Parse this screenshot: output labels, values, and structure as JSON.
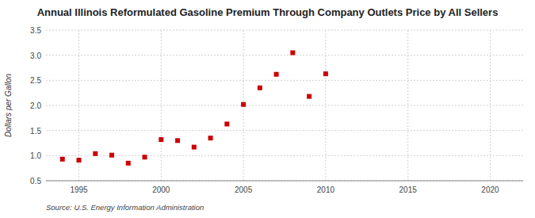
{
  "chart_data": {
    "type": "scatter",
    "title": "Annual Illinois Reformulated Gasoline Premium Through Company Outlets Price by All Sellers",
    "y_label": "Dollars per Gallon",
    "source": "Source: U.S. Energy Information Administration",
    "x": [
      1994,
      1995,
      1996,
      1997,
      1998,
      1999,
      2000,
      2001,
      2002,
      2003,
      2004,
      2005,
      2006,
      2007,
      2008,
      2009,
      2010
    ],
    "values": [
      0.93,
      0.91,
      1.04,
      1.01,
      0.85,
      0.97,
      1.32,
      1.3,
      1.17,
      1.35,
      1.63,
      2.02,
      2.35,
      2.62,
      3.05,
      2.18,
      2.63
    ],
    "color": "#cc0000",
    "marker": "square",
    "xlim": [
      1993,
      2022
    ],
    "ylim": [
      0.5,
      3.5
    ],
    "xticks": [
      1995,
      2000,
      2005,
      2010,
      2015,
      2020
    ],
    "yticks": [
      0.5,
      {
        "value": 1,
        "label": "1.0"
      },
      1.5,
      {
        "value": 2,
        "label": "2.0"
      },
      2.5,
      {
        "value": 3,
        "label": "3.0"
      },
      3.5
    ],
    "grid": true
  }
}
